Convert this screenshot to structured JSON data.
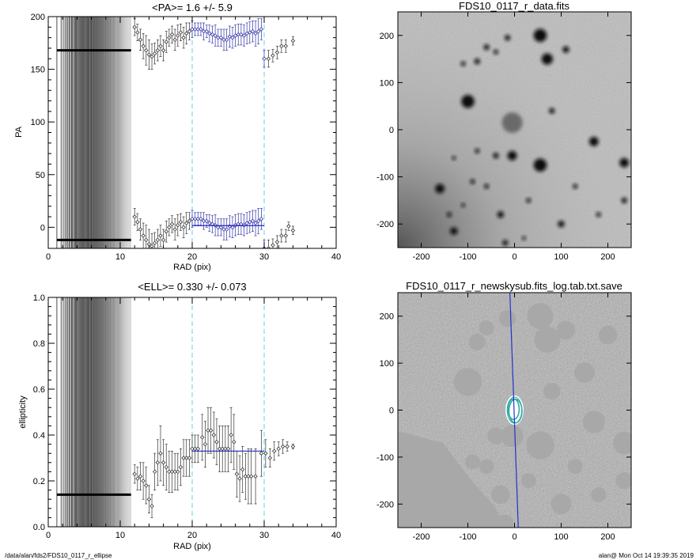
{
  "footer": {
    "path": "/data/alan/fds2/FDS10_0117_r_ellipse",
    "stamp": "alan@  Mon Oct 14 19:39:35 2019"
  },
  "chart_data": [
    {
      "type": "scatter",
      "title": "<PA>=   1.6 +/-   5.9",
      "xlabel": "RAD (pix)",
      "ylabel": "PA",
      "xlim": [
        0,
        40
      ],
      "ylim": [
        -20,
        200
      ],
      "xticks": [
        0,
        10,
        20,
        30,
        40
      ],
      "yticks": [
        0,
        50,
        100,
        150,
        200
      ],
      "dashed_lines_x": [
        20,
        30
      ],
      "dense_vertical_lines_range": [
        1.2,
        11.5
      ],
      "fit_line": {
        "x": [
          20,
          30
        ],
        "y": [
          1.6,
          1.6
        ]
      },
      "series": [
        {
          "values": [
            [
              12,
              190,
              8
            ],
            [
              12.4,
              185,
              8
            ],
            [
              12.8,
              178,
              10
            ],
            [
              13.2,
              172,
              12
            ],
            [
              13.6,
              168,
              14
            ],
            [
              14,
              164,
              14
            ],
            [
              14.4,
              162,
              12
            ],
            [
              14.8,
              165,
              10
            ],
            [
              15.2,
              168,
              10
            ],
            [
              15.6,
              172,
              10
            ],
            [
              16,
              168,
              10
            ],
            [
              16.4,
              176,
              10
            ],
            [
              16.8,
              180,
              8
            ],
            [
              17.2,
              183,
              8
            ],
            [
              17.6,
              178,
              10
            ],
            [
              18,
              182,
              10
            ],
            [
              18.4,
              185,
              8
            ],
            [
              18.8,
              180,
              10
            ],
            [
              19.2,
              184,
              10
            ],
            [
              19.6,
              186,
              8
            ],
            [
              20,
              188,
              8
            ],
            [
              20.4,
              188,
              6
            ],
            [
              20.8,
              188,
              6
            ],
            [
              21.2,
              188,
              6
            ],
            [
              21.6,
              186,
              8
            ],
            [
              22,
              186,
              6
            ],
            [
              22.4,
              184,
              8
            ],
            [
              22.8,
              183,
              8
            ],
            [
              23.2,
              182,
              10
            ],
            [
              23.6,
              180,
              8
            ],
            [
              24,
              180,
              8
            ],
            [
              24.4,
              178,
              10
            ],
            [
              24.8,
              178,
              10
            ],
            [
              25.2,
              181,
              10
            ],
            [
              25.6,
              180,
              10
            ],
            [
              26,
              182,
              10
            ],
            [
              26.4,
              183,
              10
            ],
            [
              26.8,
              183,
              10
            ],
            [
              27.2,
              182,
              10
            ],
            [
              27.6,
              184,
              10
            ],
            [
              28,
              185,
              10
            ],
            [
              28.4,
              186,
              10
            ],
            [
              28.8,
              184,
              12
            ],
            [
              29.2,
              186,
              12
            ],
            [
              29.6,
              188,
              10
            ],
            [
              30,
              160,
              8
            ],
            [
              30.6,
              160,
              8
            ],
            [
              31.2,
              163,
              6
            ],
            [
              31.8,
              166,
              6
            ],
            [
              32.4,
              172,
              6
            ],
            [
              33,
              172,
              6
            ],
            [
              34,
              177,
              4
            ]
          ]
        },
        {
          "values": [
            [
              12,
              10,
              8
            ],
            [
              12.4,
              5,
              8
            ],
            [
              12.8,
              -2,
              10
            ],
            [
              13.2,
              -8,
              12
            ],
            [
              13.6,
              -12,
              14
            ],
            [
              14,
              -16,
              14
            ],
            [
              14.4,
              -18,
              12
            ],
            [
              14.8,
              -15,
              10
            ],
            [
              15.2,
              -12,
              10
            ],
            [
              15.6,
              -8,
              10
            ],
            [
              16,
              -12,
              10
            ],
            [
              16.4,
              -4,
              10
            ],
            [
              16.8,
              0,
              8
            ],
            [
              17.2,
              3,
              8
            ],
            [
              17.6,
              -2,
              10
            ],
            [
              18,
              2,
              10
            ],
            [
              18.4,
              5,
              8
            ],
            [
              18.8,
              0,
              10
            ],
            [
              19.2,
              4,
              10
            ],
            [
              19.6,
              6,
              8
            ],
            [
              20,
              8,
              8
            ],
            [
              20.4,
              8,
              6
            ],
            [
              20.8,
              8,
              6
            ],
            [
              21.2,
              8,
              6
            ],
            [
              21.6,
              6,
              8
            ],
            [
              22,
              6,
              6
            ],
            [
              22.4,
              4,
              8
            ],
            [
              22.8,
              3,
              8
            ],
            [
              23.2,
              2,
              10
            ],
            [
              23.6,
              0,
              8
            ],
            [
              24,
              0,
              8
            ],
            [
              24.4,
              -2,
              10
            ],
            [
              24.8,
              -2,
              10
            ],
            [
              25.2,
              1,
              10
            ],
            [
              25.6,
              0,
              10
            ],
            [
              26,
              2,
              10
            ],
            [
              26.4,
              3,
              10
            ],
            [
              26.8,
              3,
              10
            ],
            [
              27.2,
              2,
              10
            ],
            [
              27.6,
              4,
              10
            ],
            [
              28,
              5,
              10
            ],
            [
              28.4,
              6,
              10
            ],
            [
              28.8,
              4,
              12
            ],
            [
              29.2,
              6,
              12
            ],
            [
              29.6,
              8,
              10
            ],
            [
              30,
              -20,
              8
            ],
            [
              30.6,
              -20,
              8
            ],
            [
              31.2,
              -17,
              6
            ],
            [
              31.8,
              -14,
              6
            ],
            [
              32.4,
              -8,
              6
            ],
            [
              33,
              -8,
              6
            ],
            [
              33.4,
              1,
              4
            ],
            [
              34,
              -3,
              4
            ]
          ]
        }
      ],
      "dense_markers_y": [
        168,
        -12
      ]
    },
    {
      "type": "scatter",
      "title": "<ELL>= 0.330 +/-  0.073",
      "xlabel": "RAD (pix)",
      "ylabel": "ellipticity",
      "xlim": [
        0,
        40
      ],
      "ylim": [
        0,
        1
      ],
      "xticks": [
        0,
        10,
        20,
        30,
        40
      ],
      "yticks": [
        0.0,
        0.2,
        0.4,
        0.6,
        0.8,
        1.0
      ],
      "dashed_lines_x": [
        20,
        30
      ],
      "dense_vertical_lines_range": [
        1.2,
        11.5
      ],
      "fit_line": {
        "x": [
          20,
          30
        ],
        "y": [
          0.33,
          0.33
        ]
      },
      "dense_marker_y": 0.14,
      "series": [
        {
          "values": [
            [
              12,
              0.23,
              0.04
            ],
            [
              12.4,
              0.21,
              0.05
            ],
            [
              12.8,
              0.22,
              0.06
            ],
            [
              13.2,
              0.2,
              0.08
            ],
            [
              13.6,
              0.18,
              0.08
            ],
            [
              14,
              0.12,
              0.06
            ],
            [
              14.4,
              0.09,
              0.05
            ],
            [
              14.8,
              0.24,
              0.08
            ],
            [
              15.2,
              0.28,
              0.1
            ],
            [
              15.6,
              0.32,
              0.12
            ],
            [
              16,
              0.28,
              0.1
            ],
            [
              16.4,
              0.26,
              0.1
            ],
            [
              16.8,
              0.24,
              0.09
            ],
            [
              17.2,
              0.24,
              0.09
            ],
            [
              17.6,
              0.24,
              0.08
            ],
            [
              18,
              0.24,
              0.08
            ],
            [
              18.4,
              0.26,
              0.08
            ],
            [
              18.8,
              0.3,
              0.08
            ],
            [
              19.2,
              0.3,
              0.08
            ],
            [
              19.6,
              0.3,
              0.08
            ],
            [
              20,
              0.34,
              0.06
            ],
            [
              20.4,
              0.34,
              0.06
            ],
            [
              20.8,
              0.34,
              0.06
            ],
            [
              21.4,
              0.39,
              0.1
            ],
            [
              21.8,
              0.36,
              0.1
            ],
            [
              22.2,
              0.42,
              0.1
            ],
            [
              22.6,
              0.42,
              0.1
            ],
            [
              23,
              0.4,
              0.1
            ],
            [
              23.4,
              0.37,
              0.1
            ],
            [
              23.8,
              0.34,
              0.1
            ],
            [
              24.2,
              0.34,
              0.1
            ],
            [
              24.6,
              0.34,
              0.1
            ],
            [
              25,
              0.34,
              0.1
            ],
            [
              25.4,
              0.4,
              0.12
            ],
            [
              25.8,
              0.37,
              0.12
            ],
            [
              26.2,
              0.23,
              0.1
            ],
            [
              26.6,
              0.21,
              0.1
            ],
            [
              27,
              0.25,
              0.1
            ],
            [
              27.4,
              0.22,
              0.1
            ],
            [
              27.8,
              0.22,
              0.12
            ],
            [
              28.2,
              0.22,
              0.12
            ],
            [
              28.8,
              0.22,
              0.12
            ],
            [
              29.6,
              0.32,
              0.1
            ],
            [
              30.2,
              0.32,
              0.06
            ],
            [
              30.8,
              0.3,
              0.04
            ],
            [
              31.4,
              0.33,
              0.04
            ],
            [
              32,
              0.34,
              0.03
            ],
            [
              32.6,
              0.35,
              0.03
            ],
            [
              33.2,
              0.35,
              0.02
            ],
            [
              34,
              0.35,
              0.01
            ]
          ]
        }
      ]
    },
    {
      "type": "heatmap",
      "title": "FDS10_0117_r_data.fits",
      "xlim": [
        -250,
        250
      ],
      "ylim": [
        -250,
        250
      ],
      "xticks": [
        -200,
        -100,
        0,
        100,
        200
      ],
      "yticks": [
        -200,
        -100,
        0,
        100,
        200
      ],
      "sources": [
        [
          55,
          200,
          14
        ],
        [
          -15,
          195,
          6
        ],
        [
          -60,
          175,
          6
        ],
        [
          -80,
          145,
          6
        ],
        [
          -40,
          165,
          5
        ],
        [
          110,
          170,
          7
        ],
        [
          -110,
          140,
          5
        ],
        [
          70,
          150,
          12
        ],
        [
          -100,
          60,
          14
        ],
        [
          80,
          40,
          6
        ],
        [
          -5,
          15,
          22
        ],
        [
          -5,
          -55,
          10
        ],
        [
          55,
          -75,
          14
        ],
        [
          -40,
          -55,
          6
        ],
        [
          -80,
          -45,
          5
        ],
        [
          -130,
          -60,
          4
        ],
        [
          170,
          -25,
          10
        ],
        [
          235,
          -70,
          10
        ],
        [
          -160,
          -125,
          10
        ],
        [
          -90,
          -110,
          5
        ],
        [
          -60,
          -120,
          5
        ],
        [
          -140,
          -180,
          5
        ],
        [
          30,
          -150,
          5
        ],
        [
          -130,
          -215,
          8
        ],
        [
          -20,
          -240,
          6
        ],
        [
          100,
          -200,
          7
        ],
        [
          180,
          -180,
          5
        ],
        [
          235,
          -150,
          6
        ],
        [
          -30,
          -180,
          7
        ],
        [
          130,
          -120,
          5
        ],
        [
          -110,
          -160,
          4
        ],
        [
          20,
          -230,
          4
        ]
      ]
    },
    {
      "type": "heatmap",
      "title": "FDS10_0117_r_newskysub.fits_log.tab.txt.save",
      "xlim": [
        -250,
        250
      ],
      "ylim": [
        -250,
        250
      ],
      "xticks": [
        -200,
        -100,
        0,
        100,
        200
      ],
      "yticks": [
        -200,
        -100,
        0,
        100,
        200
      ],
      "line": {
        "x": [
          -10,
          8
        ],
        "y": [
          250,
          -250
        ]
      },
      "masks": [
        [
          55,
          200,
          28
        ],
        [
          -15,
          195,
          18
        ],
        [
          -60,
          175,
          16
        ],
        [
          -80,
          145,
          18
        ],
        [
          110,
          170,
          20
        ],
        [
          70,
          150,
          28
        ],
        [
          -100,
          60,
          30
        ],
        [
          80,
          40,
          18
        ],
        [
          -5,
          -55,
          24
        ],
        [
          55,
          -75,
          30
        ],
        [
          -40,
          -55,
          18
        ],
        [
          170,
          -25,
          24
        ],
        [
          235,
          -70,
          24
        ],
        [
          -160,
          -125,
          24
        ],
        [
          -90,
          -110,
          16
        ],
        [
          -60,
          -120,
          16
        ],
        [
          -140,
          -180,
          16
        ],
        [
          30,
          -150,
          16
        ],
        [
          -130,
          -215,
          22
        ],
        [
          -20,
          -240,
          18
        ],
        [
          100,
          -200,
          22
        ],
        [
          180,
          -180,
          16
        ],
        [
          235,
          -150,
          18
        ],
        [
          -30,
          -180,
          20
        ],
        [
          130,
          -120,
          16
        ],
        [
          150,
          80,
          22
        ],
        [
          200,
          160,
          20
        ]
      ],
      "ellipses": [
        [
          0,
          0,
          16,
          28
        ],
        [
          0,
          0,
          18,
          30
        ],
        [
          -2,
          2,
          12,
          22
        ],
        [
          2,
          -2,
          14,
          25
        ]
      ]
    }
  ]
}
